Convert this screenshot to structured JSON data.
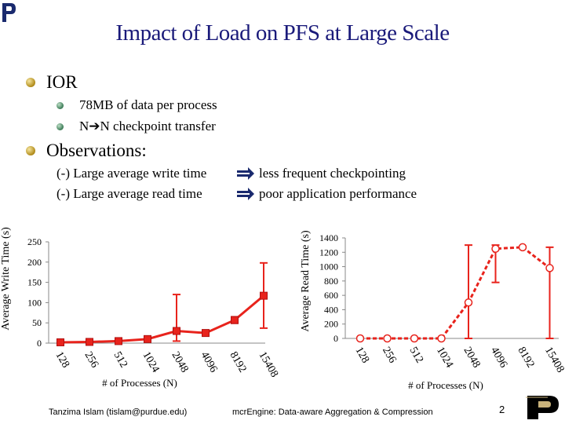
{
  "slide": {
    "title": "Impact of Load on PFS at Large Scale",
    "bullets": [
      {
        "text": "IOR",
        "sub": [
          "78MB of data per process",
          "N➔N checkpoint transfer"
        ]
      },
      {
        "text": "Observations:"
      }
    ],
    "observations": [
      {
        "left": "(-) Large average write time",
        "right": "less frequent checkpointing"
      },
      {
        "left": "(-) Large average read time",
        "right": "poor application performance"
      }
    ],
    "footer_author": "Tanzima Islam (tislam@purdue.edu)",
    "footer_title": "mcrEngine: Data-aware Aggregation & Compression",
    "page_number": "2",
    "colors": {
      "title": "#1a1a7a",
      "series": "#e8231c"
    },
    "icons": [
      "bullet-icon",
      "implies-arrow-icon",
      "purdue-logo-icon"
    ]
  },
  "chart_data": [
    {
      "type": "line",
      "title": "",
      "xlabel": "# of Processes (N)",
      "ylabel": "Average Write Time (s)",
      "categories": [
        "128",
        "256",
        "512",
        "1024",
        "2048",
        "4096",
        "8192",
        "15408"
      ],
      "ylim": [
        0,
        250
      ],
      "yticks": [
        0,
        50,
        100,
        150,
        200,
        250
      ],
      "series": [
        {
          "name": "Average Write Time",
          "values": [
            2,
            3,
            5,
            10,
            30,
            25,
            57,
            117
          ],
          "err_low": [
            2,
            3,
            4,
            8,
            5,
            25,
            49,
            37
          ],
          "err_high": [
            2,
            4,
            7,
            14,
            120,
            25,
            65,
            198
          ]
        }
      ]
    },
    {
      "type": "line",
      "title": "",
      "xlabel": "# of Processes (N)",
      "ylabel": "Average Read Time (s)",
      "categories": [
        "128",
        "256",
        "512",
        "1024",
        "2048",
        "4096",
        "8192",
        "15408"
      ],
      "ylim": [
        0,
        1400
      ],
      "yticks": [
        0,
        200,
        400,
        600,
        800,
        1000,
        1200,
        1400
      ],
      "series": [
        {
          "name": "Average Read Time",
          "values": [
            0,
            0,
            0,
            0,
            500,
            1250,
            1270,
            980
          ],
          "err_low": [
            0,
            0,
            0,
            0,
            0,
            780,
            1270,
            0
          ],
          "err_high": [
            0,
            0,
            0,
            0,
            1300,
            1300,
            1270,
            1270
          ]
        }
      ]
    }
  ]
}
